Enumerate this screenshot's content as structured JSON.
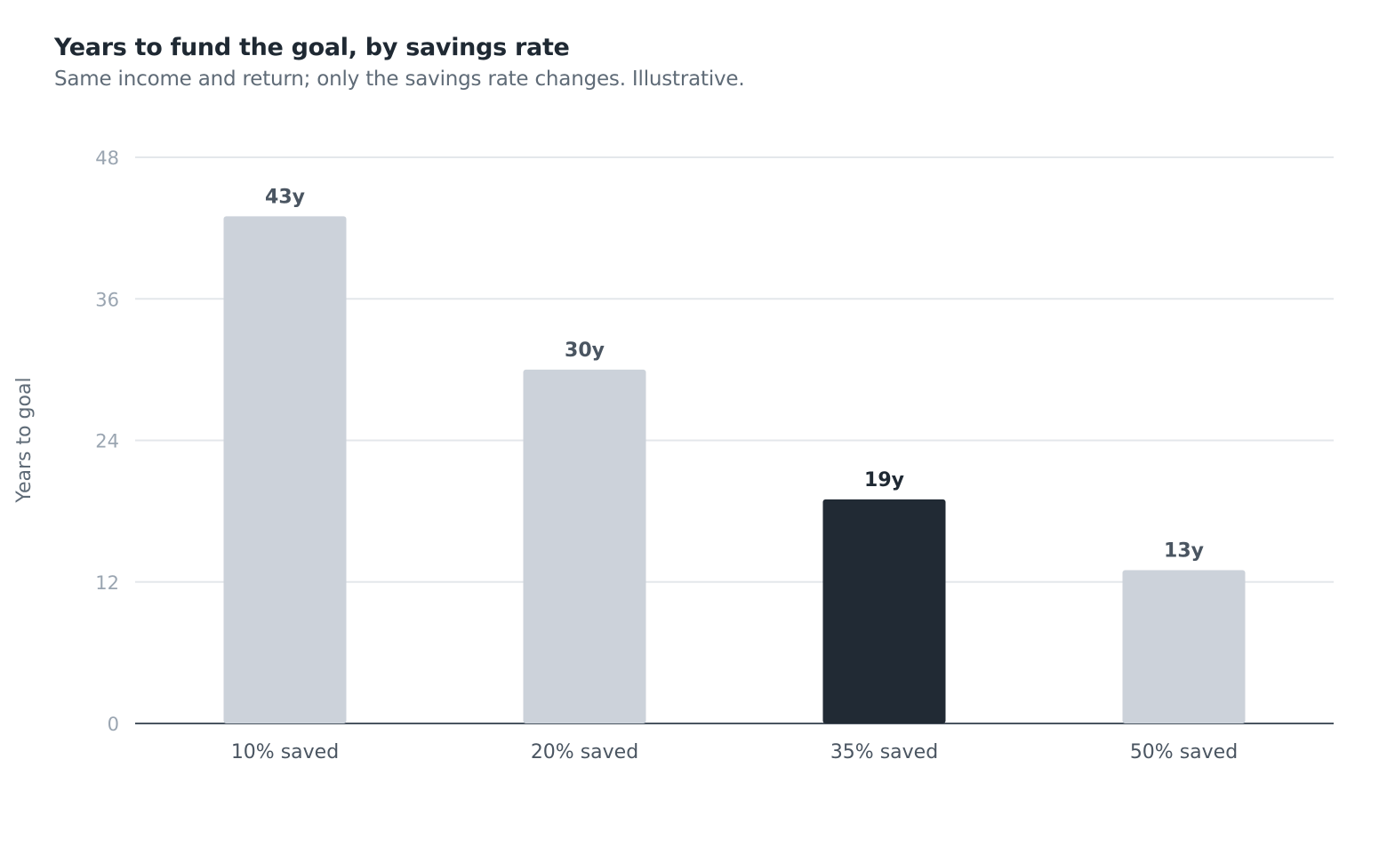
{
  "title": "Years to fund the goal, by savings rate",
  "subtitle": "Same income and return; only the savings rate changes. Illustrative.",
  "colors": {
    "bar": "#ccd2da",
    "highlight": "#212a34",
    "grid": "#e4e7eb",
    "axis": "#4a5561",
    "value_label": "#4a5561",
    "value_label_highlight": "#1f2933"
  },
  "chart_data": {
    "type": "bar",
    "categories": [
      "10% saved",
      "20% saved",
      "35% saved",
      "50% saved"
    ],
    "values": [
      43,
      30,
      19,
      13
    ],
    "value_labels": [
      "43y",
      "30y",
      "19y",
      "13y"
    ],
    "highlight_index": 2,
    "xlabel": "",
    "ylabel": "Years to goal",
    "ylim": [
      0,
      48
    ],
    "yticks": [
      0,
      12,
      24,
      36,
      48
    ],
    "grid": true,
    "legend": "none"
  }
}
